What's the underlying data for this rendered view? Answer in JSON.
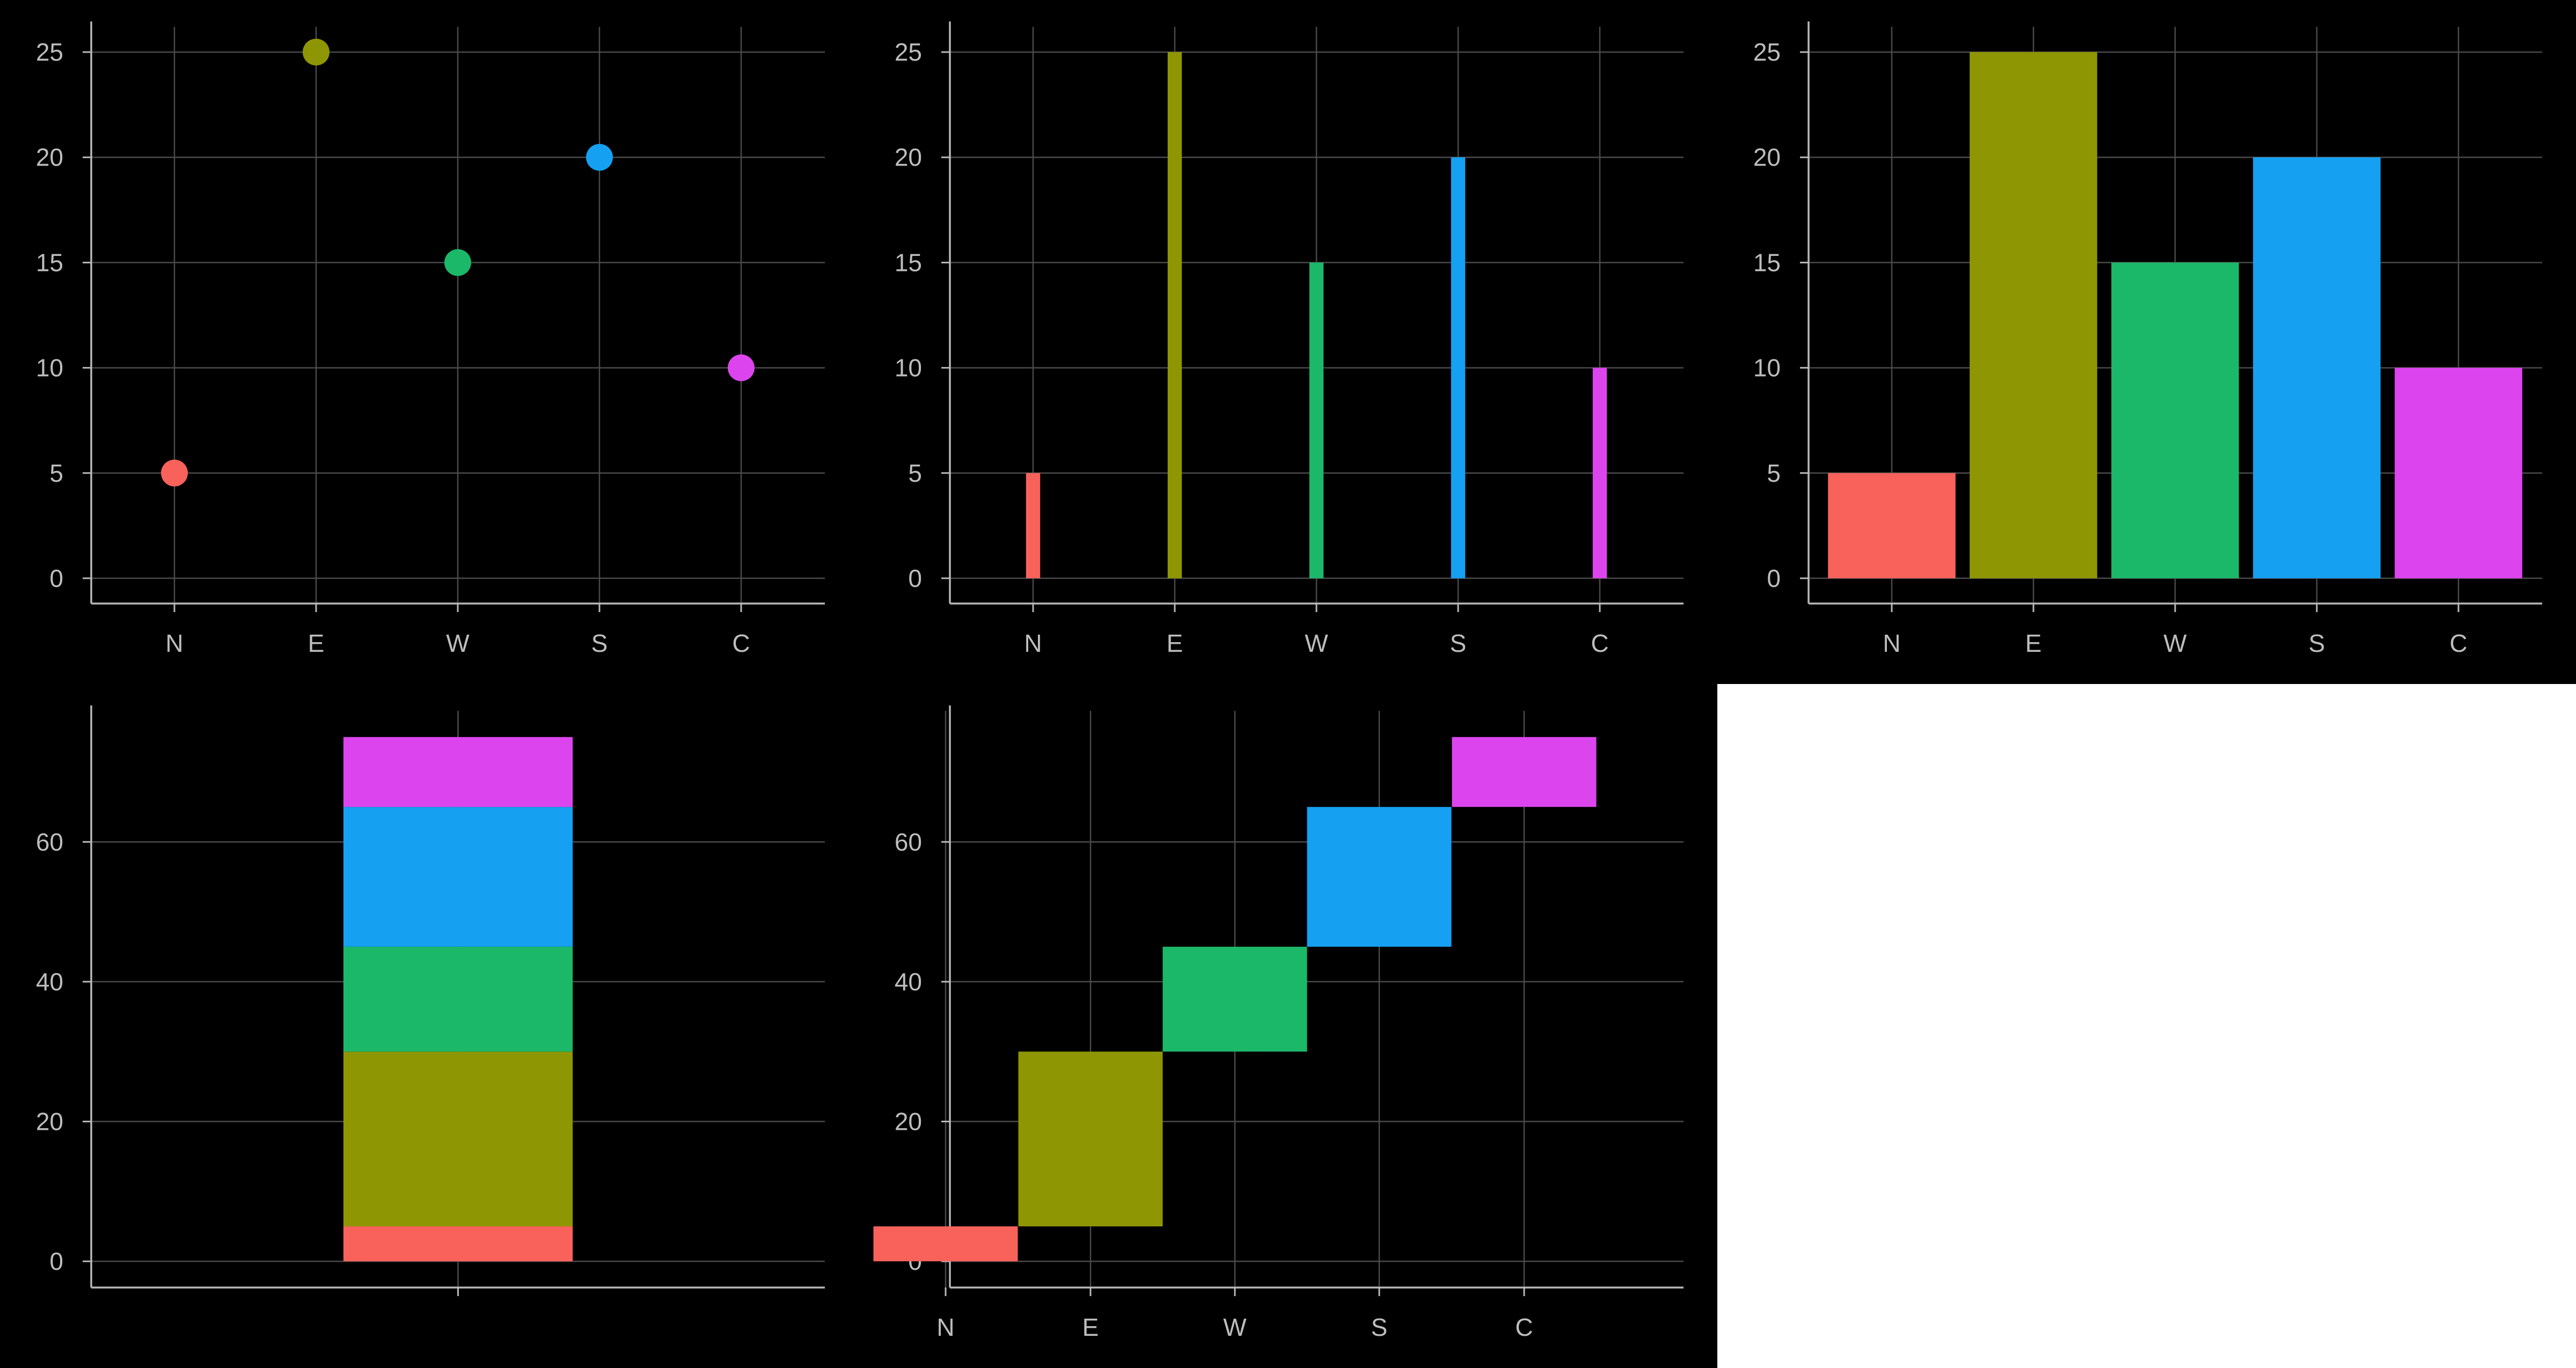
{
  "figure": {
    "background": "#000000",
    "empty_cell_color": "#ffffff"
  },
  "style": {
    "grid_color": "#4a4a4a",
    "axis_color": "#b8b8b8",
    "tick_label_color": "#bdbdbd"
  },
  "chart_data": [
    {
      "id": "points",
      "type": "scatter",
      "categories": [
        "N",
        "E",
        "W",
        "S",
        "C"
      ],
      "values": [
        5,
        25,
        15,
        20,
        10
      ],
      "colors": [
        "#F8625B",
        "#8F9604",
        "#1BB86A",
        "#16A0F2",
        "#DC45EE"
      ],
      "yticks": [
        0,
        5,
        10,
        15,
        20,
        25
      ],
      "ylim": [
        -1.2,
        26.2
      ],
      "xlabel": "",
      "ylabel": "",
      "title": "",
      "grid": true,
      "legend": "none"
    },
    {
      "id": "thin-bars",
      "type": "bar",
      "categories": [
        "N",
        "E",
        "W",
        "S",
        "C"
      ],
      "values": [
        5,
        25,
        15,
        20,
        10
      ],
      "colors": [
        "#F8625B",
        "#8F9604",
        "#1BB86A",
        "#16A0F2",
        "#DC45EE"
      ],
      "yticks": [
        0,
        5,
        10,
        15,
        20,
        25
      ],
      "ylim": [
        -1.2,
        26.2
      ],
      "bar_width_fraction": 0.1,
      "xlabel": "",
      "ylabel": "",
      "title": "",
      "grid": true,
      "legend": "none"
    },
    {
      "id": "wide-bars",
      "type": "bar",
      "categories": [
        "N",
        "E",
        "W",
        "S",
        "C"
      ],
      "values": [
        5,
        25,
        15,
        20,
        10
      ],
      "colors": [
        "#F8625B",
        "#8F9604",
        "#1BB86A",
        "#16A0F2",
        "#DC45EE"
      ],
      "yticks": [
        0,
        5,
        10,
        15,
        20,
        25
      ],
      "ylim": [
        -1.2,
        26.2
      ],
      "bar_width_fraction": 0.9,
      "xlabel": "",
      "ylabel": "",
      "title": "",
      "grid": true,
      "legend": "none"
    },
    {
      "id": "stacked-bar",
      "type": "bar",
      "stacked": true,
      "categories": [
        ""
      ],
      "series": [
        {
          "values": [
            5
          ],
          "color": "#F8625B"
        },
        {
          "values": [
            25
          ],
          "color": "#8F9604"
        },
        {
          "values": [
            15
          ],
          "color": "#1BB86A"
        },
        {
          "values": [
            20
          ],
          "color": "#16A0F2"
        },
        {
          "values": [
            10
          ],
          "color": "#DC45EE"
        }
      ],
      "yticks": [
        0,
        20,
        40,
        60
      ],
      "ylim": [
        -3.75,
        78.75
      ],
      "xlim": [
        0.2,
        1.8
      ],
      "bar_width": 0.5,
      "xlabel": "",
      "ylabel": "",
      "title": "",
      "grid": true,
      "legend": "none"
    },
    {
      "id": "waterfall",
      "type": "bar",
      "waterfall": true,
      "categories": [
        "N",
        "E",
        "W",
        "S",
        "C"
      ],
      "values": [
        5,
        25,
        15,
        20,
        10
      ],
      "colors": [
        "#F8625B",
        "#8F9604",
        "#1BB86A",
        "#16A0F2",
        "#DC45EE"
      ],
      "yticks": [
        0,
        20,
        40,
        60
      ],
      "ylim": [
        -3.75,
        78.75
      ],
      "xlabel": "",
      "ylabel": "",
      "title": "",
      "grid": true,
      "legend": "none"
    }
  ]
}
